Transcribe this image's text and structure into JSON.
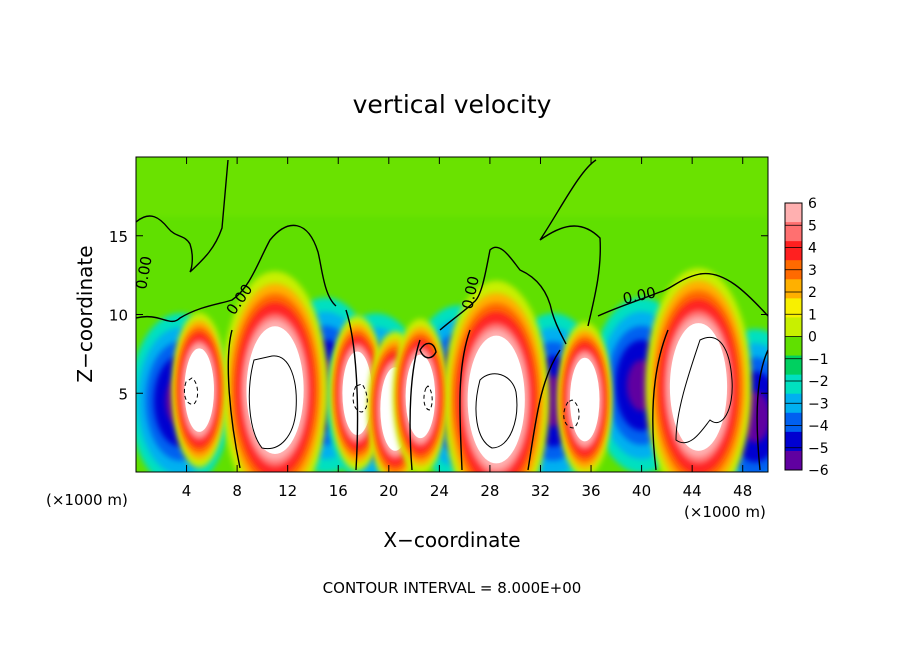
{
  "chart_data": {
    "type": "heatmap",
    "title": "vertical velocity",
    "xlabel": "X−coordinate",
    "ylabel": "Z−coordinate",
    "x_unit_left": "(×1000 m)",
    "x_unit_right": "(×1000 m)",
    "footer": "CONTOUR INTERVAL = 8.000E+00",
    "xlim": [
      0,
      50
    ],
    "ylim": [
      0,
      20
    ],
    "x_ticks": [
      4,
      8,
      12,
      16,
      20,
      24,
      28,
      32,
      36,
      40,
      44,
      48
    ],
    "y_ticks": [
      5,
      10,
      15
    ],
    "colorbar": {
      "levels": [
        -6,
        -5,
        -4,
        -3,
        -2,
        -1,
        0,
        1,
        2,
        3,
        4,
        5,
        6
      ],
      "labels": [
        "6",
        "5",
        "4",
        "3",
        "2",
        "1",
        "0",
        "−1",
        "−2",
        "−3",
        "−4",
        "−5",
        "−6"
      ],
      "colors": [
        "#ffb0b0",
        "#ff7070",
        "#ff2020",
        "#ff6a00",
        "#ffb000",
        "#f8f000",
        "#c8f000",
        "#60e000",
        "#00d060",
        "#00e0c0",
        "#00b0f0",
        "#0060f0",
        "#0000d0",
        "#6000a0"
      ]
    },
    "contour_labels": [
      "0.00",
      "0.00",
      "0.00",
      "0.00"
    ],
    "updrafts": [
      {
        "x": 11,
        "z": 5.2,
        "max": 8
      },
      {
        "x": 28.5,
        "z": 4.6,
        "max": 8
      },
      {
        "x": 44.5,
        "z": 5.4,
        "max": 8
      },
      {
        "x": 5,
        "z": 5.2,
        "max": 7
      },
      {
        "x": 17.5,
        "z": 5.0,
        "max": 7
      },
      {
        "x": 20.5,
        "z": 4.0,
        "max": 7
      },
      {
        "x": 22.5,
        "z": 4.8,
        "max": 7
      },
      {
        "x": 35.5,
        "z": 4.6,
        "max": 7
      }
    ],
    "downdrafts": [
      {
        "x": 3.5,
        "z": 4.5,
        "min": -5
      },
      {
        "x": 15,
        "z": 5.5,
        "min": -5
      },
      {
        "x": 19,
        "z": 4.5,
        "min": -5
      },
      {
        "x": 25.5,
        "z": 5.0,
        "min": -4
      },
      {
        "x": 33,
        "z": 4.5,
        "min": -5
      },
      {
        "x": 40,
        "z": 5.5,
        "min": -5
      },
      {
        "x": 49,
        "z": 3.5,
        "min": -5
      }
    ]
  }
}
